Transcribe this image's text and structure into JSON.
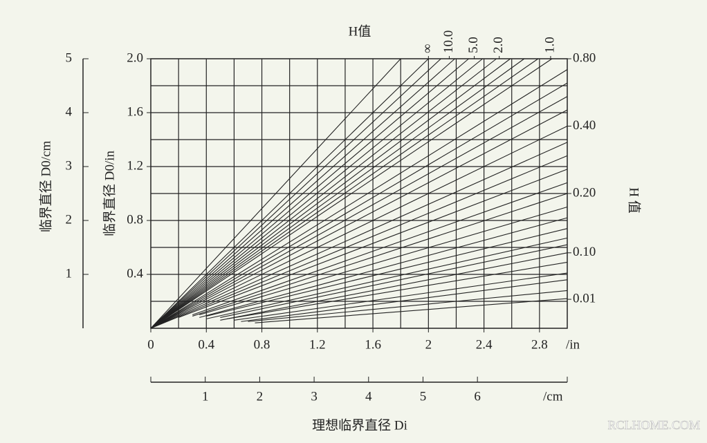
{
  "chart_data": {
    "type": "nomogram",
    "title": "H值",
    "x_label": "理想临界直径 Di",
    "y_label": "临界直径 D0/in",
    "cm_y_label": "临界直径 D0/cm",
    "h_label": "H 值",
    "x_unit": "/in",
    "cm_x_unit": "/cm",
    "watermark": "RCLHOME.COM",
    "color": "#222222",
    "xlim": [
      0,
      3.0
    ],
    "ylim": [
      0,
      2.0
    ],
    "xticks": [
      0,
      0.4,
      0.8,
      1.2,
      1.6,
      2.0,
      2.4,
      2.8
    ],
    "yticks": [
      0.4,
      0.8,
      1.2,
      1.6,
      {
        "value": 2.0,
        "label": "2.0"
      }
    ],
    "xgrid": [
      0.2,
      0.4,
      0.6,
      0.8,
      1.0,
      1.2,
      1.4,
      1.6,
      1.8,
      2.0,
      2.2,
      2.4,
      2.6,
      2.8
    ],
    "ygrid": [
      0.2,
      0.4,
      0.6,
      0.8,
      1.0,
      1.2,
      1.4,
      1.6,
      1.8
    ],
    "cm_ylim": [
      0,
      5
    ],
    "cm_yticks": [
      1,
      2,
      3,
      4,
      5
    ],
    "cm_xlim": [
      0,
      7.65
    ],
    "cm_xticks": [
      1,
      2,
      3,
      4,
      5,
      6
    ],
    "h_ticks": [
      {
        "value": 2.0,
        "label": "0.80"
      },
      {
        "value": 1.5,
        "label": "0.40"
      },
      {
        "value": 1.0,
        "label": "0.20"
      },
      {
        "value": 0.56,
        "label": "0.10"
      },
      {
        "value": 0.215,
        "label": "0.01"
      }
    ],
    "h_top_ticks": [
      {
        "value": 2.0,
        "label": "∞"
      },
      {
        "value": 2.15,
        "label": "10.0"
      },
      {
        "value": 2.33,
        "label": "5.0"
      },
      {
        "value": 2.51,
        "label": "2.0"
      },
      {
        "value": 2.88,
        "label": "1.0"
      }
    ],
    "series": [
      {
        "x": [
          0,
          1.8
        ],
        "values": [
          0,
          2.0
        ]
      },
      {
        "x": [
          0,
          2.0
        ],
        "values": [
          0,
          2.0
        ]
      },
      {
        "x": [
          0,
          2.09
        ],
        "values": [
          0,
          2.0
        ]
      },
      {
        "x": [
          0,
          2.19
        ],
        "values": [
          0,
          2.0
        ]
      },
      {
        "x": [
          0,
          2.29
        ],
        "values": [
          0,
          2.0
        ]
      },
      {
        "x": [
          0,
          2.39
        ],
        "values": [
          0,
          2.0
        ]
      },
      {
        "x": [
          0,
          2.49
        ],
        "values": [
          0,
          2.0
        ]
      },
      {
        "x": [
          0,
          2.59
        ],
        "values": [
          0,
          2.0
        ]
      },
      {
        "x": [
          0,
          2.69
        ],
        "values": [
          0,
          2.0
        ]
      },
      {
        "x": [
          0,
          2.79
        ],
        "values": [
          0,
          2.0
        ]
      },
      {
        "x": [
          0,
          2.89
        ],
        "values": [
          0,
          2.0
        ]
      },
      {
        "x": [
          0,
          3.0
        ],
        "values": [
          0,
          1.92
        ]
      },
      {
        "x": [
          0,
          3.0
        ],
        "values": [
          0,
          1.82
        ]
      },
      {
        "x": [
          0,
          3.0
        ],
        "values": [
          0,
          1.72
        ]
      },
      {
        "x": [
          0,
          3.0
        ],
        "values": [
          0,
          1.62
        ]
      },
      {
        "x": [
          0,
          3.0
        ],
        "values": [
          0,
          1.5
        ]
      },
      {
        "x": [
          0,
          3.0
        ],
        "values": [
          0,
          1.38
        ]
      },
      {
        "x": [
          0,
          3.0
        ],
        "values": [
          0,
          1.28
        ]
      },
      {
        "x": [
          0.2,
          3.0
        ],
        "values": [
          0.08,
          1.18
        ]
      },
      {
        "x": [
          0.3,
          3.0
        ],
        "values": [
          0.1,
          1.08
        ]
      },
      {
        "x": [
          0.3,
          3.0
        ],
        "values": [
          0.09,
          1.0
        ]
      },
      {
        "x": [
          0.35,
          3.0
        ],
        "values": [
          0.1,
          0.9
        ]
      },
      {
        "x": [
          0.35,
          3.0
        ],
        "values": [
          0.08,
          0.82
        ]
      },
      {
        "x": [
          0.4,
          3.0
        ],
        "values": [
          0.09,
          0.74
        ]
      },
      {
        "x": [
          0.4,
          3.0
        ],
        "values": [
          0.07,
          0.67
        ]
      },
      {
        "x": [
          0.5,
          3.0
        ],
        "values": [
          0.08,
          0.62
        ]
      },
      {
        "x": [
          0.5,
          3.0
        ],
        "values": [
          0.06,
          0.56
        ]
      },
      {
        "x": [
          0.55,
          3.0
        ],
        "values": [
          0.07,
          0.49
        ]
      },
      {
        "x": [
          0.6,
          3.0
        ],
        "values": [
          0.06,
          0.41
        ]
      },
      {
        "x": [
          0.65,
          3.0
        ],
        "values": [
          0.05,
          0.36
        ]
      },
      {
        "x": [
          0.7,
          3.0
        ],
        "values": [
          0.05,
          0.28
        ]
      },
      {
        "x": [
          0.75,
          3.0
        ],
        "values": [
          0.04,
          0.22
        ]
      }
    ]
  }
}
